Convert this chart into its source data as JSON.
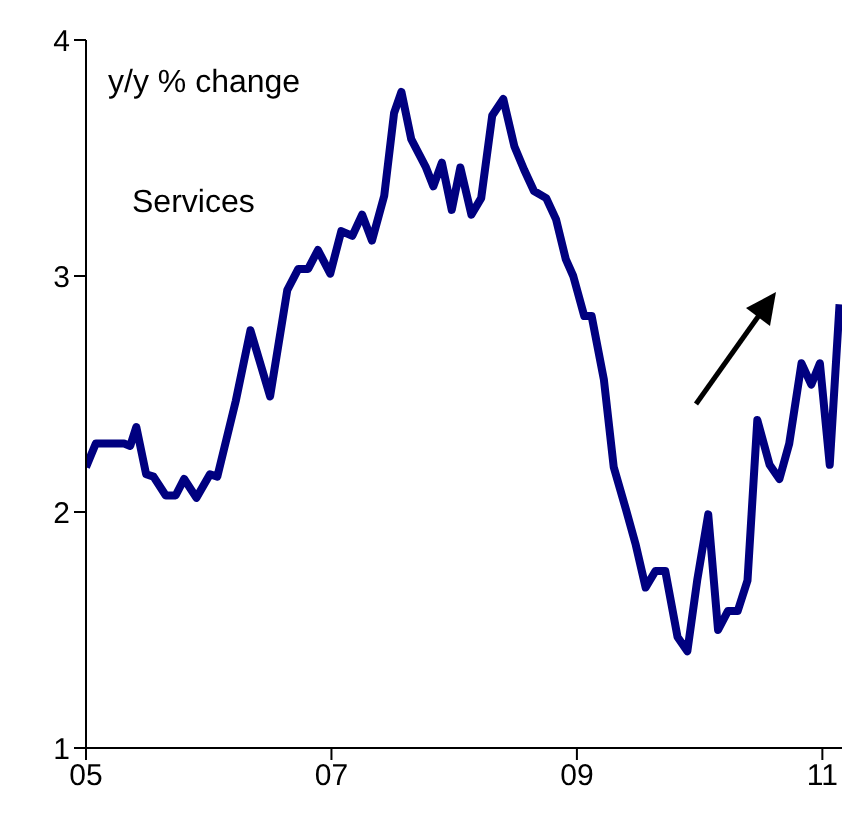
{
  "chart_data": {
    "type": "line",
    "annotations": [
      "y/y % change",
      "Services"
    ],
    "x": [
      2005.0,
      2005.08,
      2005.31,
      2005.36,
      2005.41,
      2005.49,
      2005.55,
      2005.65,
      2005.73,
      2005.8,
      2005.9,
      2006.01,
      2006.07,
      2006.22,
      2006.34,
      2006.5,
      2006.64,
      2006.73,
      2006.81,
      2006.89,
      2006.99,
      2007.08,
      2007.17,
      2007.25,
      2007.33,
      2007.43,
      2007.51,
      2007.57,
      2007.65,
      2007.77,
      2007.83,
      2007.9,
      2007.98,
      2008.05,
      2008.14,
      2008.22,
      2008.31,
      2008.4,
      2008.49,
      2008.57,
      2008.65,
      2008.75,
      2008.83,
      2008.91,
      2008.97,
      2009.06,
      2009.12,
      2009.22,
      2009.3,
      2009.4,
      2009.48,
      2009.56,
      2009.64,
      2009.72,
      2009.82,
      2009.9,
      2009.98,
      2010.07,
      2010.15,
      2010.23,
      2010.31,
      2010.39,
      2010.47,
      2010.57,
      2010.65,
      2010.73,
      2010.83,
      2010.91,
      2010.98,
      2011.06,
      2011.14
    ],
    "series": [
      {
        "color": "#000080",
        "values": [
          2.19,
          2.29,
          2.29,
          2.28,
          2.36,
          2.16,
          2.15,
          2.07,
          2.07,
          2.14,
          2.06,
          2.16,
          2.15,
          2.47,
          2.77,
          2.49,
          2.94,
          3.03,
          3.03,
          3.11,
          3.01,
          3.19,
          3.17,
          3.26,
          3.15,
          3.34,
          3.69,
          3.78,
          3.58,
          3.46,
          3.38,
          3.48,
          3.28,
          3.46,
          3.26,
          3.33,
          3.68,
          3.75,
          3.55,
          3.45,
          3.36,
          3.33,
          3.24,
          3.07,
          3.0,
          2.83,
          2.83,
          2.56,
          2.19,
          2.01,
          1.86,
          1.68,
          1.75,
          1.75,
          1.47,
          1.41,
          1.71,
          1.99,
          1.5,
          1.58,
          1.58,
          1.71,
          2.39,
          2.2,
          2.14,
          2.29,
          2.63,
          2.54,
          2.63,
          2.2,
          2.88
        ]
      }
    ],
    "xlim": [
      2005,
      2011.16
    ],
    "xticks": [
      {
        "value": 2005,
        "label": "05"
      },
      {
        "value": 2007,
        "label": "07"
      },
      {
        "value": 2009,
        "label": "09"
      },
      {
        "value": 2011,
        "label": "11"
      }
    ],
    "ylim": [
      1,
      4
    ],
    "yticks": [
      1,
      2,
      3,
      4
    ],
    "grid": false,
    "legend": false,
    "marker": "none",
    "line_style": "solid"
  }
}
